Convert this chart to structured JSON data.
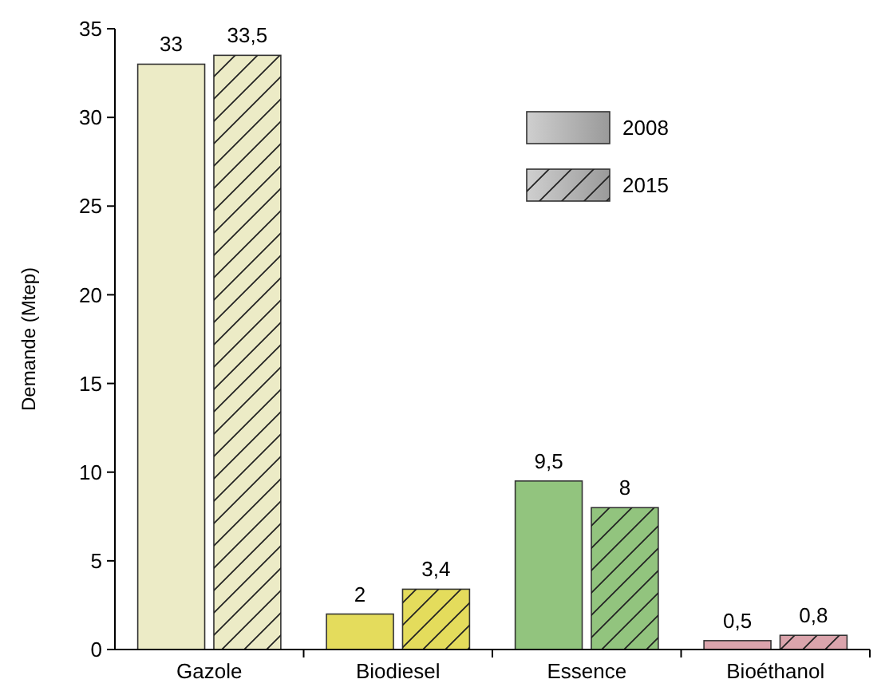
{
  "chart_data": {
    "type": "bar",
    "ylabel": "Demande (Mtep)",
    "categories": [
      "Gazole",
      "Biodiesel",
      "Essence",
      "Bioéthanol"
    ],
    "series": [
      {
        "name": "2008",
        "color": "#9a9a9a",
        "colors": [
          "#ecebc6",
          "#e4dc5c",
          "#92c47e",
          "#dba4ac"
        ],
        "values": [
          33,
          2,
          9.5,
          0.5
        ],
        "value_labels": [
          "33",
          "2",
          "9,5",
          "0,5"
        ]
      },
      {
        "name": "2015",
        "color": "#9a9a9a",
        "colors": [
          "#ecebc6",
          "#e4dc5c",
          "#92c47e",
          "#dba4ac"
        ],
        "values": [
          33.5,
          3.4,
          8,
          0.8
        ],
        "value_labels": [
          "33,5",
          "3,4",
          "8",
          "0,8"
        ]
      }
    ],
    "ylim": [
      0,
      35
    ],
    "yticks": [
      0,
      5,
      10,
      15,
      20,
      25,
      30,
      35
    ],
    "legend": "top right",
    "grid": false
  }
}
